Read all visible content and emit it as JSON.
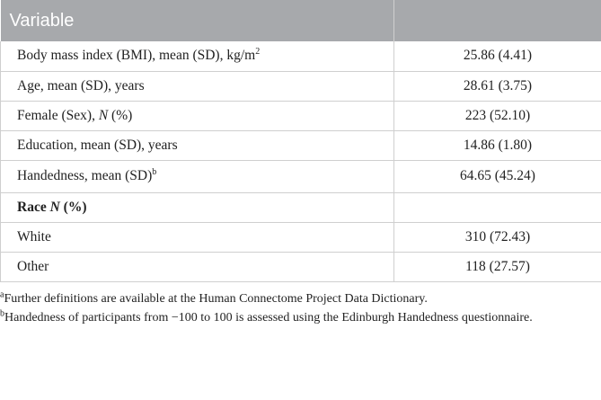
{
  "table": {
    "header": [
      "Variable"
    ],
    "rows": [
      {
        "label": "Body mass index (BMI), mean (SD), kg/m",
        "sup": "2",
        "value": "25.86 (4.41)"
      },
      {
        "label": "Age, mean (SD), years",
        "value": "28.61 (3.75)"
      },
      {
        "label_parts": [
          "Female (Sex), ",
          "N",
          " (%)"
        ],
        "value": "223 (52.10)"
      },
      {
        "label": "Education, mean (SD), years",
        "value": "14.86 (1.80)"
      },
      {
        "label": "Handedness, mean (SD)",
        "sup": "b",
        "value": "64.65 (45.24)"
      },
      {
        "label_parts": [
          "Race ",
          "N",
          " (%)"
        ]
      },
      {
        "label": "White",
        "value": "310 (72.43)"
      },
      {
        "label": "Other",
        "value": "118 (27.57)"
      }
    ]
  },
  "footnotes": [
    {
      "mark": "a",
      "text": "Further definitions are available at the Human Connectome Project Data Dictionary."
    },
    {
      "mark": "b",
      "text": "Handedness of participants from −100 to 100 is assessed using the Edinburgh Handedness questionnaire."
    }
  ]
}
